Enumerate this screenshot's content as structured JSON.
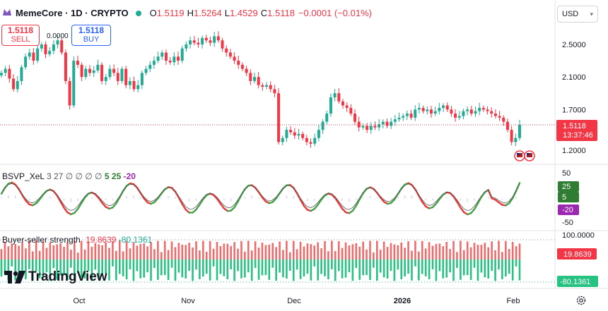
{
  "header": {
    "symbol": "MemeCore · 1D · CRYPTO",
    "open_label": "O",
    "open": "1.5119",
    "high_label": "H",
    "high": "1.5264",
    "low_label": "L",
    "low": "1.4529",
    "close_label": "C",
    "close": "1.5118",
    "change": "−0.0001 (−0.01%)"
  },
  "trade": {
    "sell_price": "1.5118",
    "sell_label": "SELL",
    "spread": "0.0000",
    "buy_price": "1.5118",
    "buy_label": "BUY"
  },
  "currency": "USD",
  "price_badge": {
    "price": "1.5118",
    "countdown": "13:37:46"
  },
  "indicator1": {
    "name": "BSVP_XeL",
    "p1": "3",
    "p2": "27",
    "nulls": "∅ ∅ ∅ ∅",
    "v1": "5",
    "v2": "25",
    "v3": "-20",
    "axis": [
      "50",
      "-50"
    ],
    "badges": [
      "25",
      "5",
      "-20"
    ]
  },
  "indicator2": {
    "name": "Buyer-seller strength",
    "buy": "19.8639",
    "sell": "-80.1361",
    "axis_top": "100.0000",
    "badges": [
      "19.8639",
      "-80.1361"
    ]
  },
  "brand": "TradingView",
  "colors": {
    "up": "#22ab94",
    "down": "#f23645",
    "osc_up": "#43a047",
    "osc_down": "#e53935",
    "buy_bar": "#26c281",
    "sell_bar": "#ef6b6b"
  },
  "chart_data": {
    "type": "candlestick",
    "price_axis_ticks": [
      "2.5000",
      "2.1000",
      "1.7000",
      "1.2000"
    ],
    "time_axis_ticks": [
      "Oct",
      "Nov",
      "Dec",
      "2026",
      "Feb"
    ],
    "approx_closes": [
      2.15,
      2.2,
      2.08,
      1.95,
      2.05,
      2.22,
      2.35,
      2.4,
      2.3,
      2.45,
      2.5,
      2.38,
      2.42,
      2.5,
      2.55,
      2.4,
      2.05,
      1.75,
      2.3,
      2.25,
      2.1,
      2.2,
      2.15,
      2.18,
      2.25,
      2.05,
      2.1,
      2.2,
      2.15,
      2.05,
      2.2,
      2.0,
      2.05,
      1.95,
      2.0,
      2.15,
      2.2,
      2.25,
      2.3,
      2.35,
      2.4,
      2.3,
      2.28,
      2.35,
      2.3,
      2.45,
      2.5,
      2.55,
      2.52,
      2.5,
      2.58,
      2.55,
      2.52,
      2.6,
      2.55,
      2.45,
      2.4,
      2.35,
      2.3,
      2.25,
      2.2,
      2.15,
      2.05,
      2.1,
      2.0,
      1.98,
      2.0,
      1.95,
      1.9,
      1.3,
      1.35,
      1.45,
      1.42,
      1.38,
      1.4,
      1.35,
      1.3,
      1.28,
      1.35,
      1.45,
      1.55,
      1.65,
      1.85,
      1.9,
      1.8,
      1.75,
      1.72,
      1.65,
      1.55,
      1.48,
      1.5,
      1.45,
      1.5,
      1.48,
      1.52,
      1.55,
      1.5,
      1.55,
      1.58,
      1.6,
      1.62,
      1.65,
      1.6,
      1.7,
      1.72,
      1.68,
      1.7,
      1.65,
      1.68,
      1.72,
      1.75,
      1.7,
      1.65,
      1.6,
      1.62,
      1.68,
      1.7,
      1.65,
      1.68,
      1.72,
      1.7,
      1.68,
      1.65,
      1.62,
      1.6,
      1.55,
      1.45,
      1.3,
      1.35,
      1.5118
    ],
    "current_price": 1.5118,
    "oscillator_range": [
      -50,
      50
    ],
    "strength_range": [
      -100,
      100
    ]
  }
}
